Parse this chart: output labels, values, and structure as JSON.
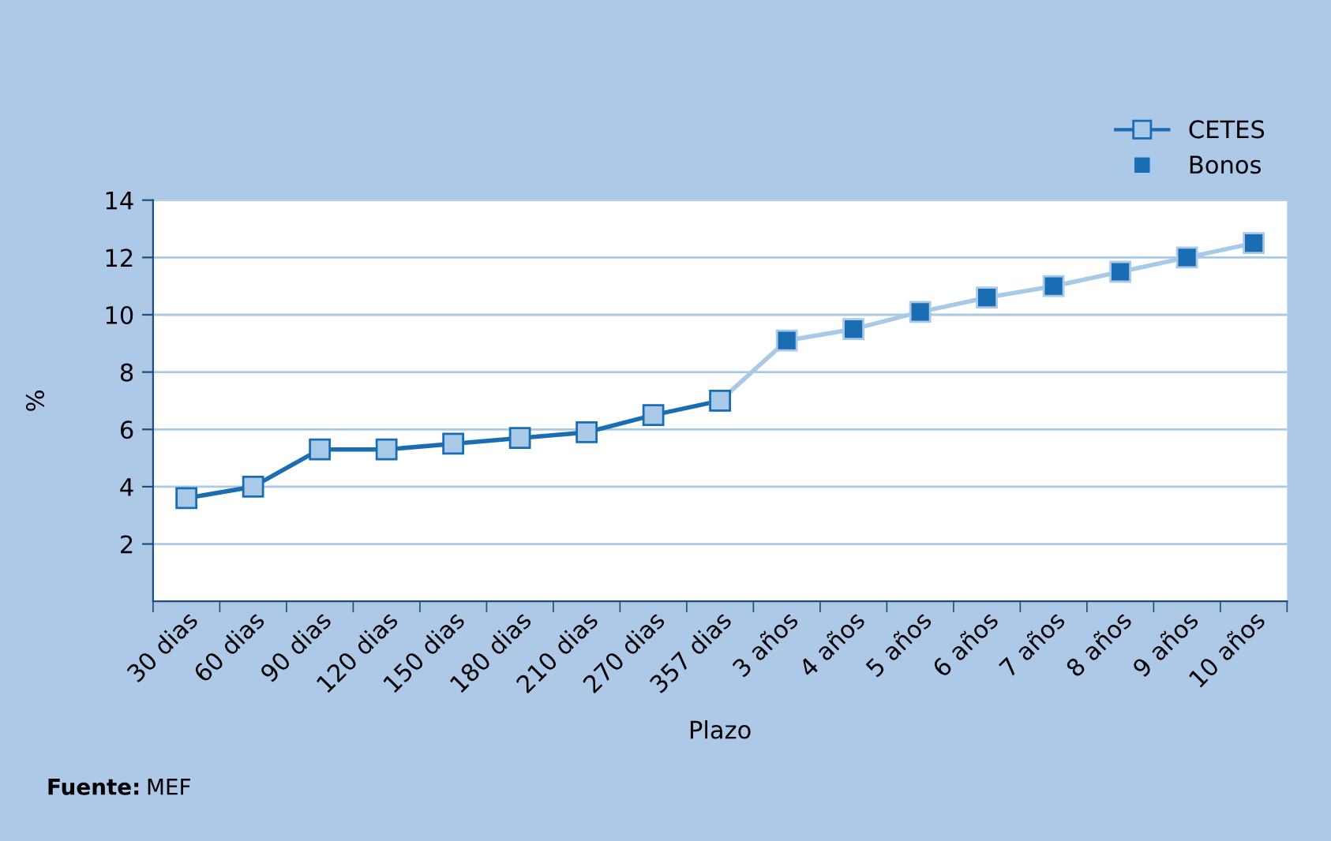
{
  "chart_data": {
    "type": "line",
    "xlabel": "Plazo",
    "ylabel": "%",
    "categories": [
      "30 dias",
      "60 dias",
      "90 dias",
      "120 dias",
      "150 dias",
      "180 dias",
      "210 dias",
      "270 dias",
      "357 dias",
      "3 años",
      "4 años",
      "5 años",
      "6 años",
      "7 años",
      "8 años",
      "9 años",
      "10 años"
    ],
    "series": [
      {
        "name": "CETES",
        "color": "#1a6cb3",
        "values": [
          3.6,
          4.0,
          5.3,
          5.3,
          5.5,
          5.7,
          5.9,
          6.5,
          7.0,
          null,
          null,
          null,
          null,
          null,
          null,
          null,
          null
        ]
      },
      {
        "name": "Bonos",
        "color": "#a9c9e8",
        "values": [
          null,
          null,
          null,
          null,
          null,
          null,
          null,
          null,
          7.0,
          9.1,
          9.5,
          10.1,
          10.6,
          11.0,
          11.5,
          12.0,
          12.5
        ]
      }
    ],
    "ylim": [
      0,
      14
    ],
    "yticks": [
      2,
      4,
      6,
      8,
      10,
      12,
      14
    ],
    "grid": "y",
    "legend": "top right",
    "marker": "square",
    "annotations": [
      "Fuente: MEF"
    ]
  }
}
